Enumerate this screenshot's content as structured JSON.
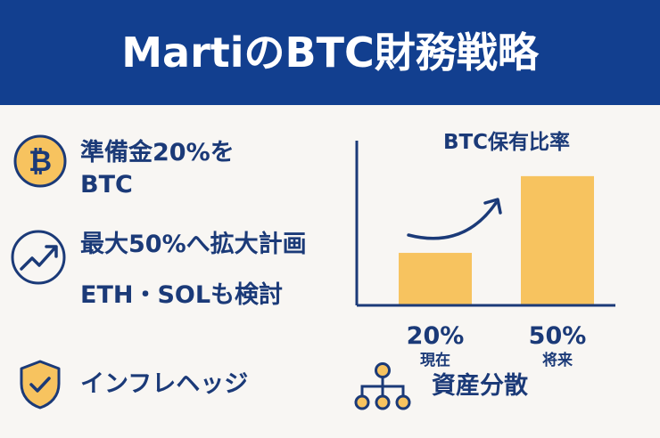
{
  "header": {
    "title": "MartiのBTC財務戦略"
  },
  "features": {
    "btc_reserve": "準備金20%をBTC",
    "expansion": "最大50%へ拡大計画",
    "altcoins": "ETH・SOLも検討",
    "inflation_hedge": "インフレヘッジ",
    "diversification": "資産分散"
  },
  "icons": {
    "btc_reserve": "bitcoin-coin-icon",
    "expansion": "growth-arrow-icon",
    "inflation_hedge": "shield-check-icon",
    "diversification": "hierarchy-icon"
  },
  "colors": {
    "header_bg": "#123f8f",
    "text": "#1b3a78",
    "accent": "#f7c35f",
    "background": "#f8f6f3"
  },
  "chart_data": {
    "type": "bar",
    "title": "BTC保有比率",
    "categories": [
      "現在",
      "将来"
    ],
    "values": [
      20,
      50
    ],
    "value_labels": [
      "20%",
      "50%"
    ],
    "ylim": [
      0,
      55
    ],
    "grid": false,
    "annotation": "upward-trend-arrow"
  }
}
